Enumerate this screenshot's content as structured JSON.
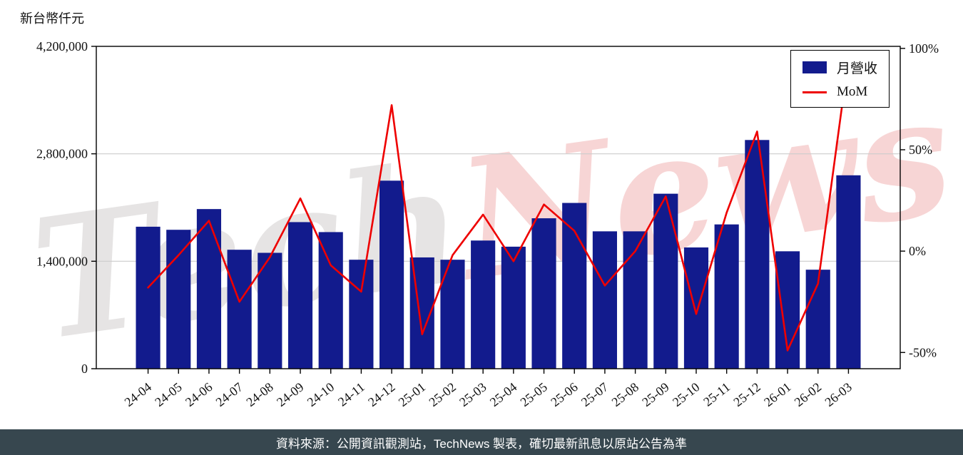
{
  "chart": {
    "unit_label": "新台幣仟元"
  },
  "watermark": {
    "part1": "Tech",
    "part2": "News"
  },
  "footer": {
    "text": "資料來源：公開資訊觀測站，TechNews 製表，確切最新訊息以原站公告為準"
  },
  "colors": {
    "bar": "#121b8d",
    "line": "#ee0000",
    "footer_bg": "#37474f",
    "grid": "#cccccc",
    "axis": "#000000",
    "tick_text": "#111111"
  },
  "chart_data": {
    "type": "bar",
    "title": "",
    "categories": [
      "24-04",
      "24-05",
      "24-06",
      "24-07",
      "24-08",
      "24-09",
      "24-10",
      "24-11",
      "24-12",
      "25-01",
      "25-02",
      "25-03",
      "25-04",
      "25-05",
      "25-06",
      "25-07",
      "25-08",
      "25-09",
      "25-10",
      "25-11",
      "25-12",
      "26-01",
      "26-02",
      "26-03"
    ],
    "series": [
      {
        "name": "月營收",
        "type": "bar",
        "axis": "left",
        "unit": "新台幣仟元",
        "values": [
          1850000,
          1810000,
          2080000,
          1550000,
          1510000,
          1910000,
          1780000,
          1420000,
          2450000,
          1450000,
          1420000,
          1670000,
          1590000,
          1960000,
          2160000,
          1790000,
          1790000,
          2280000,
          1580000,
          1880000,
          2980000,
          1530000,
          1290000,
          2520000
        ]
      },
      {
        "name": "MoM",
        "type": "line",
        "axis": "right",
        "unit": "%",
        "values": [
          -18,
          -2,
          15,
          -25,
          -3,
          26,
          -7,
          -20,
          72,
          -41,
          -2,
          18,
          -5,
          23,
          10,
          -17,
          0,
          27,
          -31,
          19,
          59,
          -49,
          -16,
          95
        ]
      }
    ],
    "left_axis": {
      "label": "新台幣仟元",
      "lim": [
        0,
        4200000
      ],
      "ticks": [
        0,
        1400000,
        2800000,
        4200000
      ],
      "tick_labels": [
        "0",
        "1,400,000",
        "2,800,000",
        "4,200,000"
      ]
    },
    "right_axis": {
      "lim": [
        -58,
        101
      ],
      "ticks": [
        -50,
        0,
        50,
        100
      ],
      "tick_labels": [
        "-50%",
        "0%",
        "50%",
        "100%"
      ]
    },
    "legend_position": "upper right",
    "grid": "horizontal"
  }
}
